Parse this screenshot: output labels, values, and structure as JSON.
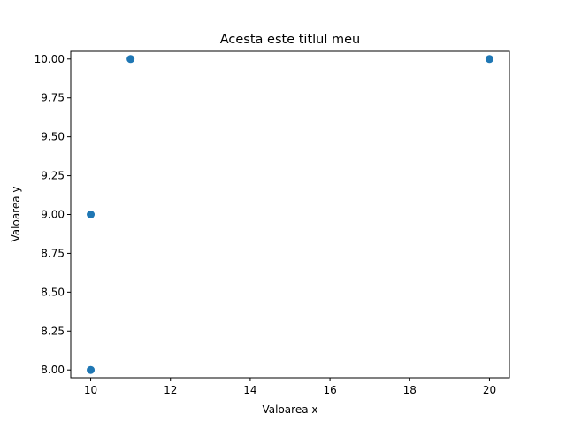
{
  "chart_data": {
    "type": "scatter",
    "title": "Acesta este titlul meu",
    "xlabel": "Valoarea x",
    "ylabel": "Valoarea y",
    "xlim": [
      9.5,
      20.5
    ],
    "ylim": [
      7.95,
      10.05
    ],
    "x_ticks": [
      10,
      12,
      14,
      16,
      18,
      20
    ],
    "x_tick_labels": [
      "10",
      "12",
      "14",
      "16",
      "18",
      "20"
    ],
    "y_ticks": [
      8.0,
      8.25,
      8.5,
      8.75,
      9.0,
      9.25,
      9.5,
      9.75,
      10.0
    ],
    "y_tick_labels": [
      "8.00",
      "8.25",
      "8.50",
      "8.75",
      "9.00",
      "9.25",
      "9.50",
      "9.75",
      "10.00"
    ],
    "grid": false,
    "series": [
      {
        "x": [
          10,
          10,
          11,
          20
        ],
        "y": [
          8,
          9,
          10,
          10
        ],
        "color": "#1f77b4"
      }
    ]
  }
}
